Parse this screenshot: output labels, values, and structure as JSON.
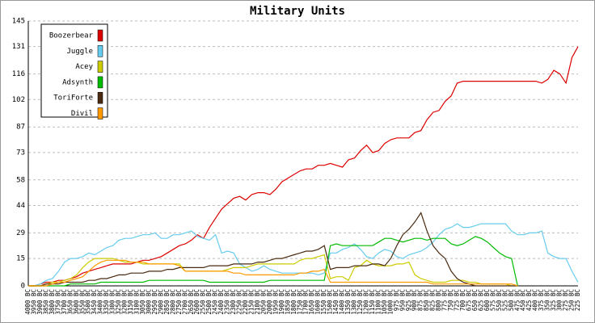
{
  "chart_data": {
    "type": "line",
    "title": "Military Units",
    "categories": [
      "4000 BC",
      "3950 BC",
      "3900 BC",
      "3850 BC",
      "3800 BC",
      "3750 BC",
      "3700 BC",
      "3650 BC",
      "3600 BC",
      "3550 BC",
      "3500 BC",
      "3450 BC",
      "3400 BC",
      "3350 BC",
      "3300 BC",
      "3250 BC",
      "3200 BC",
      "3150 BC",
      "3100 BC",
      "3050 BC",
      "3000 BC",
      "2950 BC",
      "2900 BC",
      "2850 BC",
      "2800 BC",
      "2750 BC",
      "2700 BC",
      "2650 BC",
      "2600 BC",
      "2550 BC",
      "2500 BC",
      "2450 BC",
      "2400 BC",
      "2350 BC",
      "2300 BC",
      "2250 BC",
      "2200 BC",
      "2150 BC",
      "2100 BC",
      "2050 BC",
      "2000 BC",
      "1950 BC",
      "1900 BC",
      "1850 BC",
      "1800 BC",
      "1750 BC",
      "1700 BC",
      "1650 BC",
      "1600 BC",
      "1550 BC",
      "1500 BC",
      "1450 BC",
      "1400 BC",
      "1350 BC",
      "1300 BC",
      "1250 BC",
      "1200 BC",
      "1150 BC",
      "1100 BC",
      "1050 BC",
      "1000 BC",
      "975 BC",
      "950 BC",
      "925 BC",
      "900 BC",
      "875 BC",
      "850 BC",
      "825 BC",
      "800 BC",
      "775 BC",
      "750 BC",
      "725 BC",
      "700 BC",
      "675 BC",
      "650 BC",
      "625 BC",
      "600 BC",
      "575 BC",
      "550 BC",
      "525 BC",
      "500 BC",
      "475 BC",
      "450 BC",
      "425 BC",
      "400 BC",
      "375 BC",
      "350 BC",
      "325 BC",
      "300 BC",
      "275 BC",
      "250 BC",
      "225 BC"
    ],
    "series": [
      {
        "name": "Boozerbear",
        "color": "#dd0000",
        "values": [
          0,
          0,
          1,
          2,
          2,
          3,
          3,
          4,
          5,
          7,
          8,
          9,
          10,
          11,
          12,
          12,
          12,
          12,
          13,
          14,
          14,
          15,
          16,
          18,
          20,
          22,
          23,
          25,
          28,
          26,
          32,
          37,
          42,
          45,
          48,
          49,
          47,
          50,
          51,
          51,
          50,
          53,
          57,
          59,
          61,
          63,
          64,
          64,
          66,
          66,
          67,
          66,
          65,
          69,
          70,
          74,
          77,
          73,
          74,
          78,
          80,
          81,
          81,
          81,
          84,
          85,
          91,
          95,
          96,
          101,
          104,
          111,
          112,
          112,
          112,
          112,
          112,
          112,
          112,
          112,
          112,
          112,
          112,
          112,
          112,
          111,
          113,
          118,
          116,
          111,
          125,
          131
        ]
      },
      {
        "name": "Juggle",
        "color": "#66ccee",
        "values": [
          0,
          0,
          1,
          3,
          4,
          8,
          13,
          15,
          15,
          16,
          18,
          17,
          19,
          21,
          22,
          25,
          26,
          26,
          27,
          28,
          28,
          29,
          26,
          26,
          28,
          28,
          29,
          30,
          27,
          26,
          25,
          28,
          18,
          19,
          18,
          12,
          10,
          8,
          9,
          11,
          9,
          8,
          7,
          7,
          7,
          7,
          7,
          7,
          6,
          7,
          18,
          18,
          20,
          21,
          23,
          20,
          16,
          15,
          18,
          20,
          19,
          16,
          15,
          17,
          18,
          19,
          21,
          24,
          28,
          31,
          32,
          34,
          32,
          32,
          33,
          34,
          34,
          34,
          34,
          34,
          30,
          28,
          28,
          29,
          29,
          30,
          18,
          16,
          15,
          15,
          8,
          2
        ]
      },
      {
        "name": "Acey",
        "color": "#cccc00",
        "values": [
          0,
          0,
          0,
          1,
          2,
          2,
          3,
          4,
          6,
          10,
          13,
          15,
          15,
          15,
          15,
          14,
          13,
          13,
          13,
          12,
          12,
          12,
          12,
          12,
          12,
          12,
          8,
          8,
          8,
          8,
          8,
          8,
          8,
          9,
          10,
          10,
          10,
          11,
          12,
          12,
          12,
          12,
          12,
          12,
          12,
          14,
          15,
          15,
          16,
          17,
          4,
          5,
          5,
          3,
          10,
          11,
          14,
          12,
          11,
          11,
          11,
          12,
          12,
          13,
          6,
          4,
          3,
          2,
          2,
          2,
          3,
          3,
          3,
          2,
          2,
          1,
          1,
          1,
          1,
          1,
          0,
          0,
          null,
          null,
          null,
          null,
          null,
          null,
          null,
          null,
          null,
          null
        ]
      },
      {
        "name": "Adsynth",
        "color": "#00bb00",
        "values": [
          0,
          0,
          0,
          0,
          0,
          0,
          0,
          1,
          1,
          1,
          1,
          1,
          2,
          2,
          2,
          2,
          2,
          2,
          2,
          2,
          3,
          3,
          3,
          3,
          3,
          3,
          3,
          3,
          3,
          3,
          2,
          2,
          2,
          2,
          2,
          2,
          2,
          2,
          2,
          2,
          3,
          3,
          3,
          3,
          3,
          3,
          3,
          3,
          3,
          3,
          22,
          23,
          22,
          22,
          22,
          22,
          22,
          22,
          24,
          26,
          26,
          25,
          24,
          25,
          26,
          26,
          25,
          26,
          26,
          26,
          23,
          22,
          23,
          25,
          27,
          26,
          24,
          21,
          18,
          16,
          15,
          0,
          null,
          null,
          null,
          null,
          null,
          null,
          null,
          null,
          null,
          null
        ]
      },
      {
        "name": "ToriForte",
        "color": "#4a2a10",
        "values": [
          0,
          0,
          0,
          1,
          1,
          1,
          2,
          2,
          2,
          2,
          3,
          3,
          4,
          4,
          5,
          6,
          6,
          7,
          7,
          7,
          8,
          8,
          8,
          9,
          9,
          10,
          10,
          10,
          10,
          10,
          11,
          11,
          11,
          11,
          12,
          12,
          12,
          12,
          13,
          13,
          14,
          15,
          15,
          16,
          17,
          18,
          19,
          19,
          20,
          22,
          9,
          10,
          10,
          10,
          11,
          11,
          11,
          12,
          12,
          11,
          15,
          22,
          28,
          31,
          35,
          40,
          30,
          22,
          18,
          15,
          8,
          4,
          2,
          1,
          0,
          0,
          0,
          0,
          0,
          0,
          0,
          0,
          null,
          null,
          null,
          null,
          null,
          null,
          null,
          null,
          null,
          null
        ]
      },
      {
        "name": "Divil",
        "color": "#ff9900",
        "values": [
          0,
          0,
          0,
          0,
          1,
          2,
          2,
          3,
          4,
          5,
          8,
          11,
          13,
          14,
          14,
          14,
          14,
          13,
          13,
          13,
          12,
          12,
          12,
          12,
          12,
          11,
          8,
          8,
          8,
          8,
          8,
          8,
          8,
          8,
          7,
          7,
          6,
          6,
          6,
          6,
          6,
          6,
          6,
          6,
          6,
          7,
          7,
          8,
          8,
          9,
          2,
          2,
          2,
          2,
          2,
          2,
          2,
          2,
          2,
          2,
          2,
          2,
          2,
          2,
          2,
          2,
          2,
          1,
          1,
          1,
          1,
          1,
          1,
          1,
          1,
          1,
          1,
          1,
          1,
          1,
          1,
          0,
          null,
          null,
          null,
          null,
          null,
          null,
          null,
          null,
          null,
          null
        ]
      }
    ],
    "ylim": [
      0,
      145
    ],
    "yticks": [
      0,
      15,
      29,
      44,
      58,
      73,
      87,
      102,
      116,
      131,
      145
    ],
    "grid": true,
    "legend": "upper left"
  }
}
